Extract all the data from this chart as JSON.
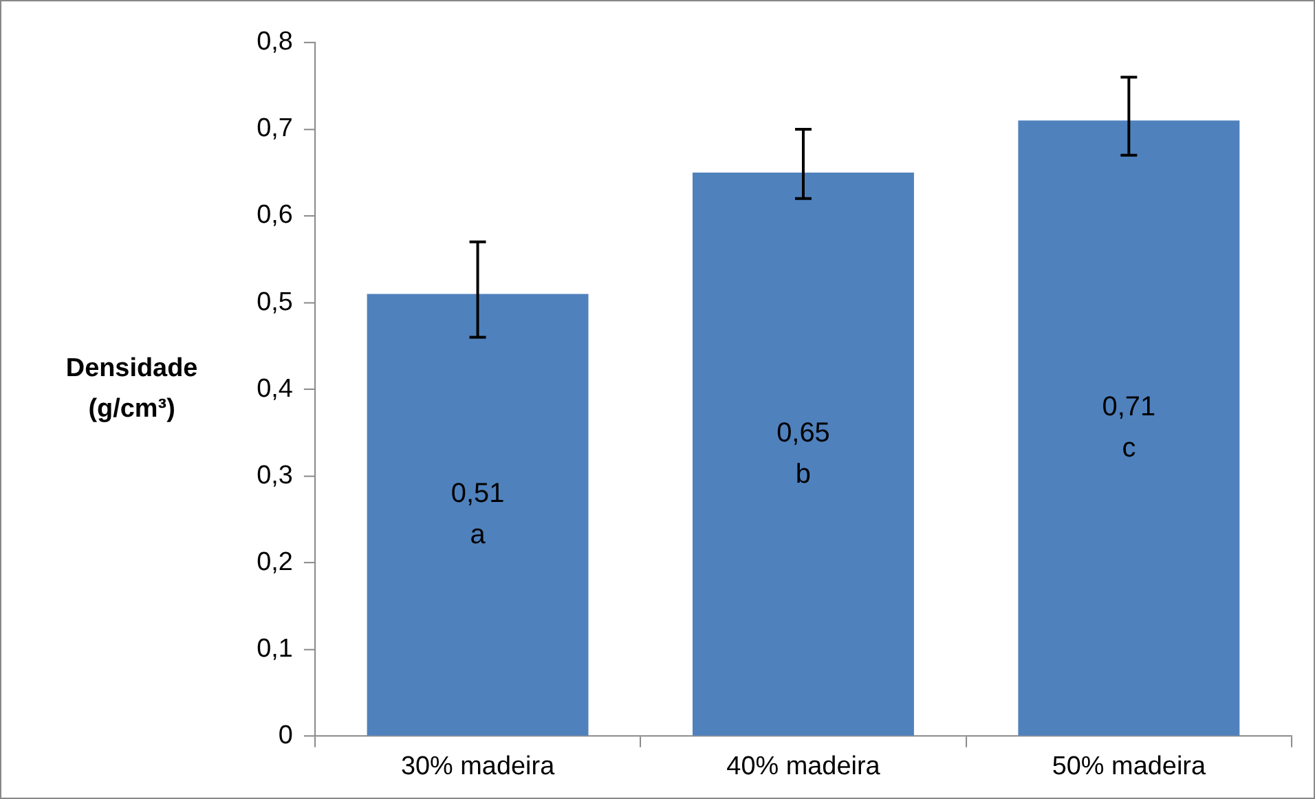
{
  "chart_data": {
    "type": "bar",
    "ylabel": "Densidade\n(g/cm³)",
    "categories": [
      "30% madeira",
      "40% madeira",
      "50% madeira"
    ],
    "values": [
      0.51,
      0.65,
      0.71
    ],
    "color": "#4f81bd",
    "errors": [
      [
        0.46,
        0.57
      ],
      [
        0.62,
        0.7
      ],
      [
        0.67,
        0.76
      ]
    ],
    "value_labels": [
      "0,51\na",
      "0,65\nb",
      "0,71\nc"
    ],
    "ylim": [
      0,
      0.8
    ],
    "yticks": [
      0,
      {
        "value": 0.1,
        "label": "0,1"
      },
      {
        "value": 0.2,
        "label": "0,2"
      },
      {
        "value": 0.3,
        "label": "0,3"
      },
      {
        "value": 0.4,
        "label": "0,4"
      },
      {
        "value": 0.5,
        "label": "0,5"
      },
      {
        "value": 0.6,
        "label": "0,6"
      },
      {
        "value": 0.7,
        "label": "0,7"
      },
      {
        "value": 0.8,
        "label": "0,8"
      }
    ],
    "grid": false,
    "legend": false
  }
}
